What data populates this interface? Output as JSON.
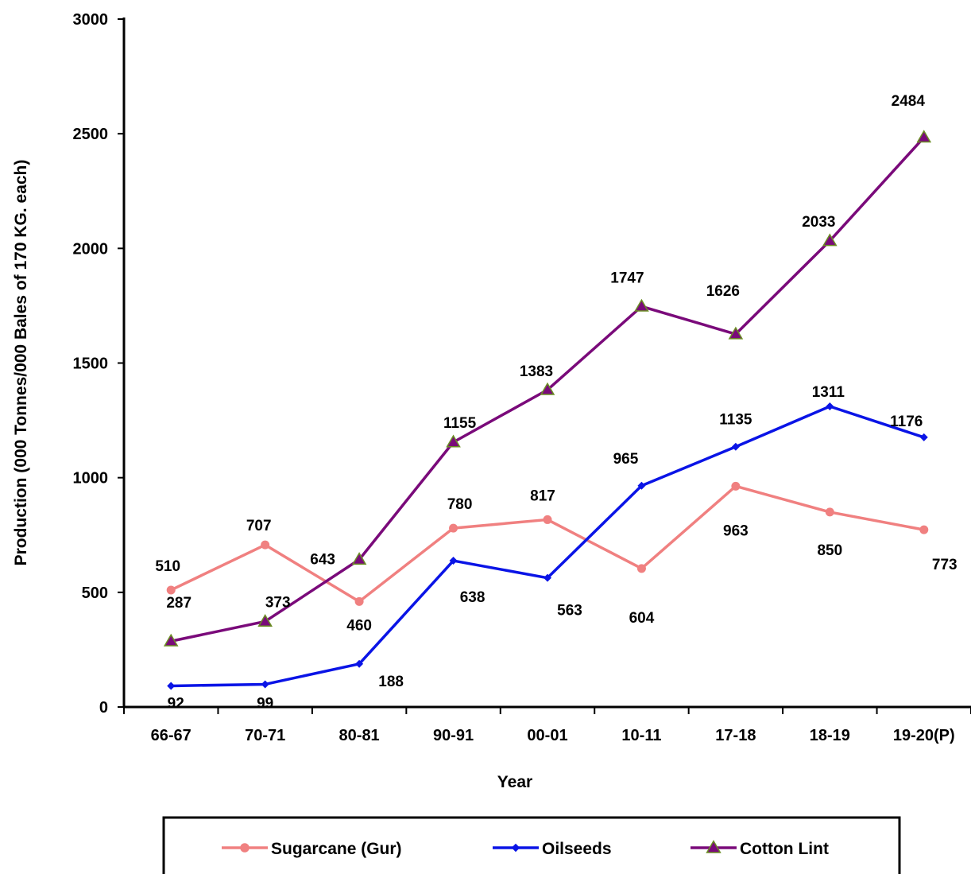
{
  "chart_data": {
    "type": "line",
    "title": "",
    "xlabel": "Year",
    "ylabel": "Production (000 Tonnes/000 Bales of  170  KG. each)",
    "categories": [
      "66-67",
      "70-71",
      "80-81",
      "90-91",
      "00-01",
      "10-11",
      "17-18",
      "18-19",
      "19-20(P)"
    ],
    "ylim": [
      0,
      3000
    ],
    "yticks": [
      "0",
      "500",
      "1000",
      "1500",
      "2000",
      "2500",
      "3000"
    ],
    "grid": false,
    "legend_position": "bottom",
    "series": [
      {
        "name": "Sugarcane (Gur)",
        "color": "#f08080",
        "marker": "circle",
        "values": [
          510,
          707,
          460,
          780,
          817,
          604,
          963,
          850,
          773
        ]
      },
      {
        "name": "Oilseeds",
        "color": "#0a14e6",
        "marker": "diamond",
        "values": [
          92,
          99,
          188,
          638,
          563,
          965,
          1135,
          1311,
          1176
        ]
      },
      {
        "name": "Cotton Lint",
        "color": "#7a0a7a",
        "marker": "triangle",
        "marker_fill": "#7a0a7a",
        "marker_stroke": "#6b8e23",
        "values": [
          287,
          373,
          643,
          1155,
          1383,
          1747,
          1626,
          2033,
          2484
        ]
      }
    ]
  }
}
